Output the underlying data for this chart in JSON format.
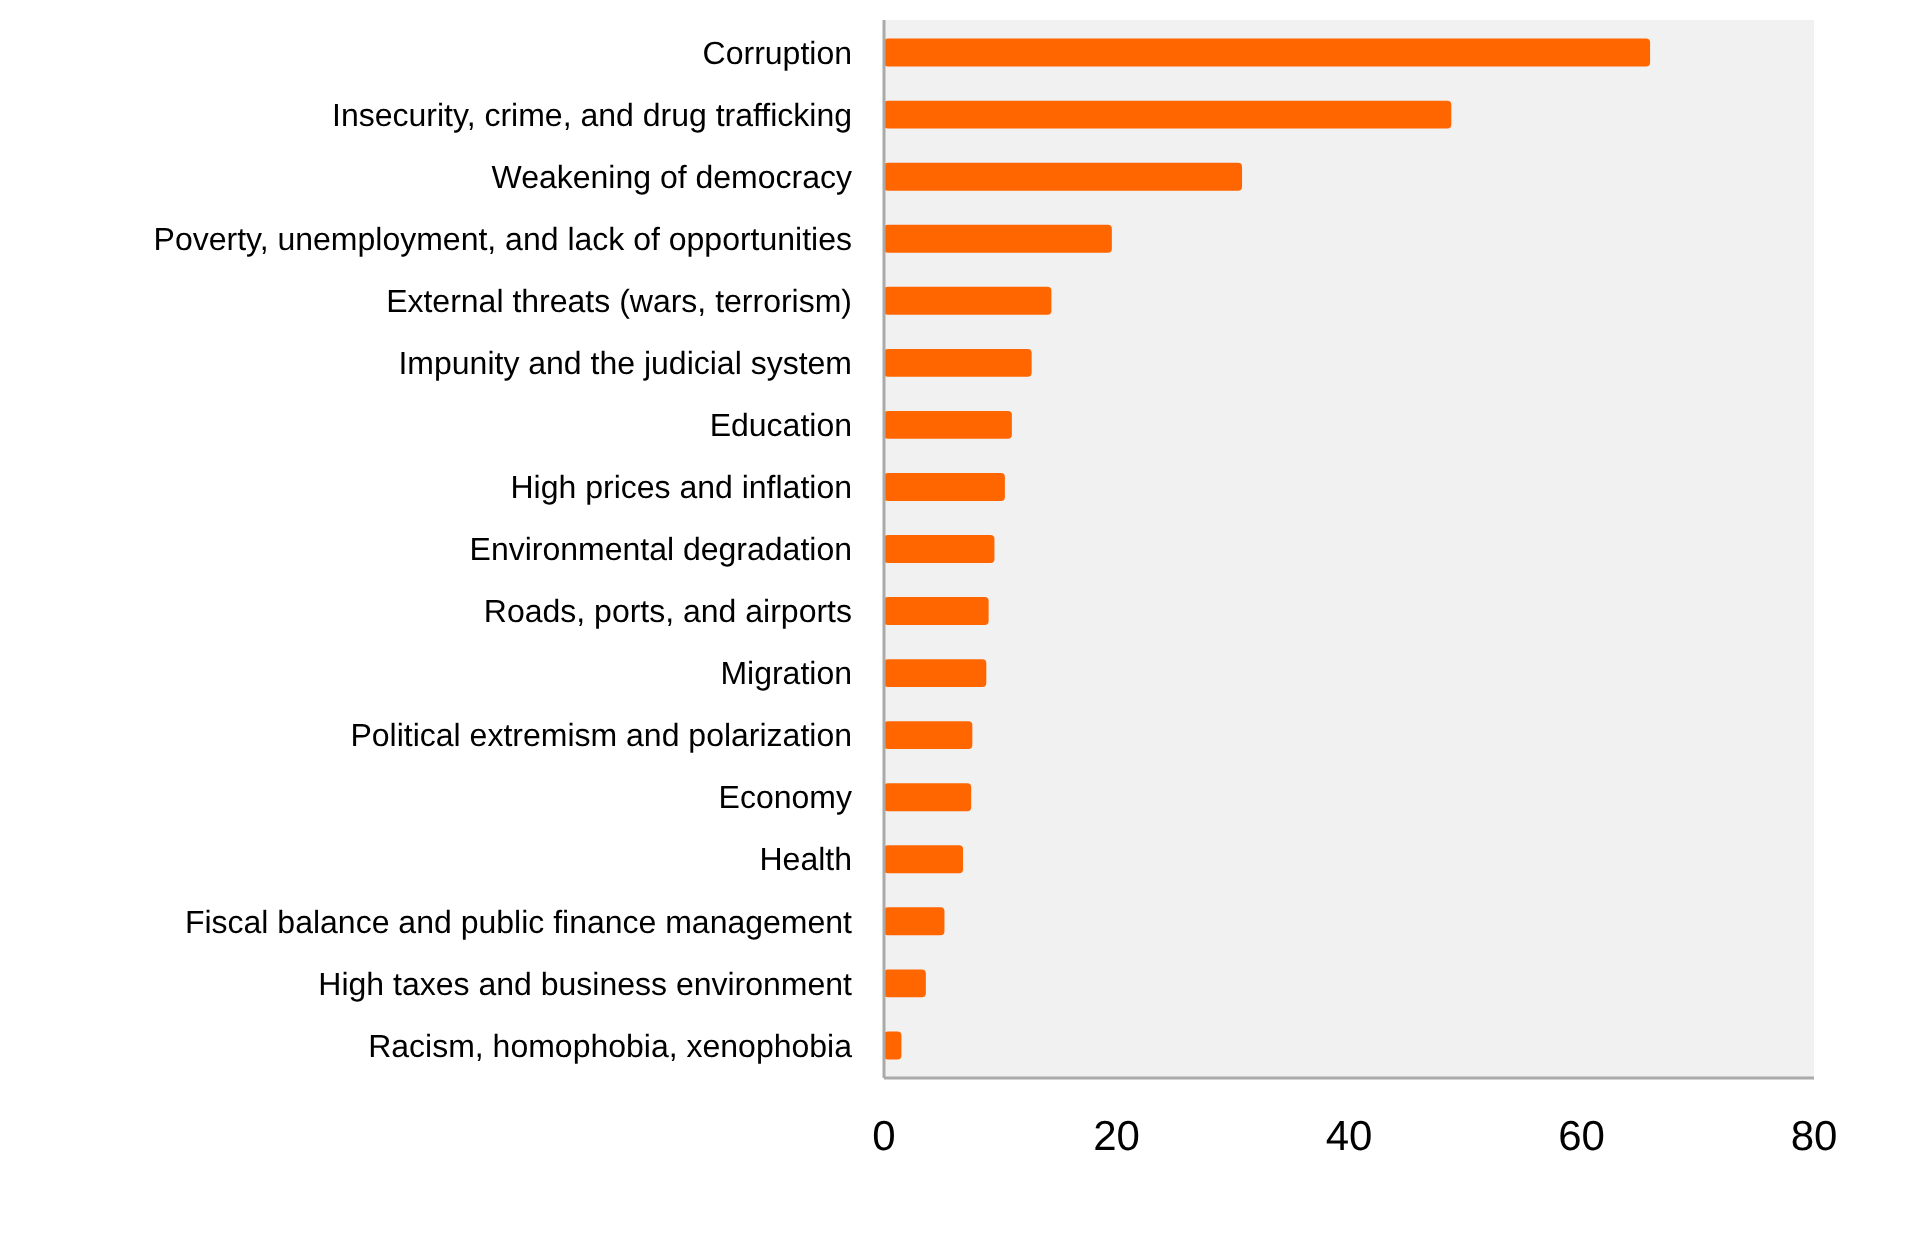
{
  "chart_data": {
    "type": "bar",
    "orientation": "horizontal",
    "categories": [
      "Corruption",
      "Insecurity, crime, and drug trafficking",
      "Weakening of democracy",
      "Poverty, unemployment, and lack of opportunities",
      "External threats (wars, terrorism)",
      "Impunity and the judicial system",
      "Education",
      "High prices and inflation",
      "Environmental degradation",
      "Roads, ports, and airports",
      "Migration",
      "Political extremism and polarization",
      "Economy",
      "Health",
      "Fiscal balance and public finance management",
      "High taxes and business environment",
      "Racism, homophobia, xenophobia"
    ],
    "values": [
      65.9,
      48.8,
      30.8,
      19.6,
      14.4,
      12.7,
      11.0,
      10.4,
      9.5,
      9.0,
      8.8,
      7.6,
      7.5,
      6.8,
      5.2,
      3.6,
      1.5
    ],
    "color": "#ff6600",
    "xlim": [
      0,
      80
    ],
    "xticks": [
      0,
      20,
      40,
      60,
      80
    ],
    "grid": false
  }
}
